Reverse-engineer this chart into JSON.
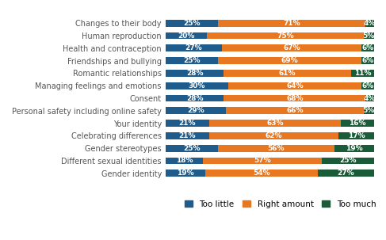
{
  "categories": [
    "Changes to their body",
    "Human reproduction",
    "Health and contraception",
    "Friendships and bullying",
    "Romantic relationships",
    "Managing feelings and emotions",
    "Consent",
    "Personal safety including online safety",
    "Your identity",
    "Celebrating differences",
    "Gender stereotypes",
    "Different sexual identities",
    "Gender identity"
  ],
  "too_little": [
    25,
    20,
    27,
    25,
    28,
    30,
    28,
    29,
    21,
    21,
    25,
    18,
    19
  ],
  "right_amount": [
    71,
    75,
    67,
    69,
    61,
    64,
    68,
    66,
    63,
    62,
    56,
    57,
    54
  ],
  "too_much": [
    4,
    5,
    6,
    6,
    11,
    6,
    4,
    5,
    16,
    17,
    19,
    25,
    27
  ],
  "color_too_little": "#1f5c8b",
  "color_right_amount": "#e87722",
  "color_too_much": "#1a5c38",
  "label_too_little": "Too little",
  "label_right_amount": "Right amount",
  "label_too_much": "Too much",
  "bar_height": 0.55,
  "text_color": "#ffffff",
  "fontsize_bar": 6.5,
  "fontsize_labels": 7,
  "fontsize_legend": 7.5
}
